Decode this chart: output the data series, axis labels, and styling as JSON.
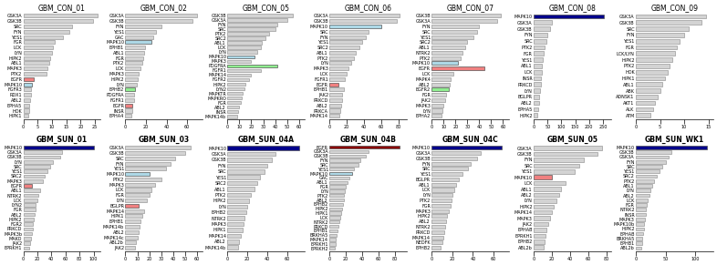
{
  "panels": [
    {
      "title": "GBM_CON_01",
      "xlim": 27,
      "xticks": [
        0,
        5,
        10,
        15,
        20,
        25
      ],
      "kinases": [
        "GSK3A",
        "GSK3B",
        "SRC",
        "FYN",
        "YES1",
        "FGR",
        "LCK",
        "LYN",
        "HIPK2",
        "ABL1",
        "MAPK3",
        "PTK2",
        "EGFR",
        "MAPK10",
        "FGFR3",
        "RDX1",
        "ABL2",
        "EPHA5",
        "HOK",
        "HIPK1"
      ],
      "values": [
        26,
        24.5,
        17,
        16,
        14,
        11,
        10.5,
        10,
        9.5,
        9,
        8.5,
        8,
        3.5,
        3,
        2.8,
        2.6,
        2.4,
        2.2,
        2,
        1.8
      ],
      "colors": [
        "#d3d3d3",
        "#d3d3d3",
        "#d3d3d3",
        "#d3d3d3",
        "#d3d3d3",
        "#d3d3d3",
        "#d3d3d3",
        "#d3d3d3",
        "#d3d3d3",
        "#d3d3d3",
        "#d3d3d3",
        "#d3d3d3",
        "#f08080",
        "#add8e6",
        "#d3d3d3",
        "#d3d3d3",
        "#d3d3d3",
        "#d3d3d3",
        "#d3d3d3",
        "#d3d3d3"
      ]
    },
    {
      "title": "GBM_CON_02",
      "xlim": 75,
      "xticks": [
        0,
        20,
        40,
        60
      ],
      "kinases": [
        "GSK3A",
        "GSK3B",
        "FYN",
        "YES1",
        "GAC",
        "MAPK10",
        "EPHB1",
        "ABL1",
        "FGR",
        "PTK2",
        "LCK",
        "MAPK3",
        "HIPK2",
        "LYN",
        "EPHB2",
        "PDGFRA",
        "FGFR1",
        "EGFR",
        "INSR",
        "EPHA4"
      ],
      "values": [
        70,
        65,
        35,
        30,
        27,
        25,
        19,
        18,
        17,
        16,
        15,
        13,
        12,
        11,
        9,
        8.5,
        8,
        7,
        6.5,
        6
      ],
      "colors": [
        "#d3d3d3",
        "#d3d3d3",
        "#d3d3d3",
        "#d3d3d3",
        "#d3d3d3",
        "#add8e6",
        "#d3d3d3",
        "#d3d3d3",
        "#d3d3d3",
        "#d3d3d3",
        "#d3d3d3",
        "#d3d3d3",
        "#d3d3d3",
        "#d3d3d3",
        "#90ee90",
        "#d3d3d3",
        "#d3d3d3",
        "#f08080",
        "#d3d3d3",
        "#d3d3d3"
      ]
    },
    {
      "title": "GBM_CON_05",
      "xlim": 65,
      "xticks": [
        0,
        10,
        20,
        30,
        40,
        50,
        60
      ],
      "kinases": [
        "GSK3B",
        "GSK3A",
        "FYN",
        "SRC",
        "PTK2",
        "SRC2",
        "ABL1",
        "LCK",
        "LYN",
        "MAPK10",
        "MAPK3",
        "PDGFRA",
        "FGFR1",
        "MAPK14",
        "FGFR2",
        "HIPK2",
        "LYN2",
        "MAPKTR",
        "MAPKRO",
        "FGR",
        "ABL2",
        "INSR",
        "MAPK14b"
      ],
      "values": [
        55,
        50,
        42,
        40,
        35,
        32,
        29,
        28,
        25,
        23,
        20,
        42,
        28,
        20,
        18,
        15,
        14,
        13,
        12,
        11,
        10,
        9,
        8
      ],
      "colors": [
        "#d3d3d3",
        "#d3d3d3",
        "#d3d3d3",
        "#d3d3d3",
        "#d3d3d3",
        "#d3d3d3",
        "#d3d3d3",
        "#d3d3d3",
        "#d3d3d3",
        "#add8e6",
        "#d3d3d3",
        "#90ee90",
        "#d3d3d3",
        "#d3d3d3",
        "#d3d3d3",
        "#d3d3d3",
        "#d3d3d3",
        "#d3d3d3",
        "#d3d3d3",
        "#d3d3d3",
        "#d3d3d3",
        "#d3d3d3",
        "#d3d3d3"
      ]
    },
    {
      "title": "GBM_CON_06",
      "xlim": 90,
      "xticks": [
        0,
        20,
        40,
        60,
        80
      ],
      "kinases": [
        "GSK3A",
        "GSK3B",
        "MAPK10",
        "SRC",
        "FYN",
        "YES1",
        "SRC2",
        "ABL1",
        "PTK2",
        "LYN",
        "MAPK3",
        "LCK",
        "FGFR1",
        "EGFR",
        "EPHB1",
        "JAK2",
        "PRKCD",
        "ABL2",
        "PRKCA",
        "MAPK14"
      ],
      "values": [
        82,
        78,
        60,
        45,
        42,
        38,
        35,
        30,
        28,
        25,
        22,
        20,
        18,
        10,
        17,
        15,
        14,
        13,
        12,
        11
      ],
      "colors": [
        "#d3d3d3",
        "#d3d3d3",
        "#add8e6",
        "#d3d3d3",
        "#d3d3d3",
        "#d3d3d3",
        "#d3d3d3",
        "#d3d3d3",
        "#d3d3d3",
        "#d3d3d3",
        "#d3d3d3",
        "#d3d3d3",
        "#d3d3d3",
        "#f08080",
        "#d3d3d3",
        "#d3d3d3",
        "#d3d3d3",
        "#d3d3d3",
        "#d3d3d3",
        "#d3d3d3"
      ]
    },
    {
      "title": "GBM_CON_07",
      "xlim": 65,
      "xticks": [
        0,
        10,
        20,
        30,
        40,
        50,
        60
      ],
      "kinases": [
        "GSK3B",
        "GSK3A",
        "FYN",
        "SRC",
        "YES1",
        "SRC2",
        "ABL1",
        "NTRK2",
        "PTK2",
        "MAPK10",
        "EGFR",
        "LCK",
        "MAPK4",
        "ABL2",
        "EGFR2",
        "FGR",
        "JAK2",
        "MAPK3",
        "LYN",
        "EPHA2"
      ],
      "values": [
        58,
        55,
        40,
        38,
        35,
        30,
        28,
        26,
        24,
        22,
        44,
        18,
        16,
        15,
        14,
        12,
        11,
        10,
        9,
        8
      ],
      "colors": [
        "#d3d3d3",
        "#d3d3d3",
        "#d3d3d3",
        "#d3d3d3",
        "#d3d3d3",
        "#d3d3d3",
        "#d3d3d3",
        "#d3d3d3",
        "#d3d3d3",
        "#add8e6",
        "#f08080",
        "#d3d3d3",
        "#d3d3d3",
        "#d3d3d3",
        "#90ee90",
        "#d3d3d3",
        "#d3d3d3",
        "#d3d3d3",
        "#d3d3d3",
        "#d3d3d3"
      ]
    },
    {
      "title": "GBM_CON_08",
      "xlim": 280,
      "xticks": [
        0,
        50,
        100,
        150,
        200,
        250
      ],
      "kinases": [
        "MAPK10",
        "GSK3A",
        "GSK3B",
        "FYN",
        "SRC",
        "PTK2",
        "FGR",
        "YES1",
        "ABL1",
        "LCK",
        "INSR",
        "PRKCD",
        "LYN",
        "BGLPR",
        "ABL2",
        "EPHA5",
        "HIPK2"
      ],
      "values": [
        255,
        65,
        60,
        50,
        45,
        38,
        35,
        32,
        30,
        28,
        26,
        24,
        22,
        20,
        18,
        16,
        14
      ],
      "colors": [
        "#00008b",
        "#d3d3d3",
        "#d3d3d3",
        "#d3d3d3",
        "#d3d3d3",
        "#d3d3d3",
        "#d3d3d3",
        "#d3d3d3",
        "#d3d3d3",
        "#d3d3d3",
        "#d3d3d3",
        "#d3d3d3",
        "#d3d3d3",
        "#d3d3d3",
        "#d3d3d3",
        "#d3d3d3",
        "#d3d3d3"
      ]
    },
    {
      "title": "GBM_CON_09",
      "xlim": 16,
      "xticks": [
        0,
        5,
        10,
        15
      ],
      "kinases": [
        "GSK3A",
        "GSK3B",
        "SRC",
        "FYN",
        "YES1",
        "FGR",
        "LCK/LYN",
        "HIPK2",
        "PTK2",
        "HOK",
        "HIPK1",
        "ABL1",
        "ABK",
        "ADNSK1",
        "AKT1",
        "ALK",
        "ATM"
      ],
      "values": [
        14.5,
        13.5,
        11,
        10,
        9,
        8.5,
        8,
        7.5,
        7,
        6.5,
        6,
        5.5,
        5,
        4.5,
        4,
        3.5,
        3
      ],
      "colors": [
        "#d3d3d3",
        "#d3d3d3",
        "#d3d3d3",
        "#d3d3d3",
        "#d3d3d3",
        "#d3d3d3",
        "#d3d3d3",
        "#d3d3d3",
        "#d3d3d3",
        "#d3d3d3",
        "#d3d3d3",
        "#d3d3d3",
        "#d3d3d3",
        "#d3d3d3",
        "#d3d3d3",
        "#d3d3d3",
        "#d3d3d3"
      ]
    },
    {
      "title": "GBM_SUN_01",
      "xlim": 110,
      "xticks": [
        0,
        20,
        40,
        60,
        80,
        100
      ],
      "kinases": [
        "MAPK10",
        "GSK3A",
        "GSK3B",
        "LYN",
        "SRC",
        "YES1",
        "SRC2",
        "MAPK3",
        "EGFR",
        "ABL1",
        "NTRK2",
        "LCK",
        "LYN2",
        "FGR",
        "ABL2",
        "HIPK2",
        "FGR2",
        "PRKCD",
        "MAPK3b",
        "MAKO",
        "JAK2",
        "EPRKH1"
      ],
      "values": [
        100,
        55,
        52,
        42,
        38,
        34,
        30,
        28,
        12,
        24,
        22,
        20,
        18,
        17,
        16,
        15,
        14,
        13,
        12,
        11,
        10,
        9
      ],
      "colors": [
        "#00008b",
        "#d3d3d3",
        "#d3d3d3",
        "#d3d3d3",
        "#d3d3d3",
        "#d3d3d3",
        "#d3d3d3",
        "#d3d3d3",
        "#f08080",
        "#d3d3d3",
        "#d3d3d3",
        "#d3d3d3",
        "#d3d3d3",
        "#d3d3d3",
        "#d3d3d3",
        "#d3d3d3",
        "#d3d3d3",
        "#d3d3d3",
        "#d3d3d3",
        "#d3d3d3",
        "#d3d3d3",
        "#d3d3d3"
      ]
    },
    {
      "title": "GBM_SUN_03",
      "xlim": 65,
      "xticks": [
        0,
        10,
        20,
        30,
        40,
        50,
        60
      ],
      "kinases": [
        "GSK3A",
        "GSK3B",
        "SRC",
        "FYN",
        "YES1",
        "MAPK10",
        "PTK2",
        "MAPK3",
        "LCK",
        "FGR",
        "LYN",
        "BGLPR",
        "MAPK14",
        "HIPK1",
        "EPHB1",
        "MAPK14b",
        "ABL2",
        "MAPK14c",
        "ABL2b",
        "JAK2"
      ],
      "values": [
        55,
        50,
        42,
        38,
        34,
        20,
        30,
        25,
        22,
        20,
        18,
        11,
        16,
        14,
        13,
        12,
        11,
        10,
        9,
        8
      ],
      "colors": [
        "#d3d3d3",
        "#d3d3d3",
        "#d3d3d3",
        "#d3d3d3",
        "#d3d3d3",
        "#add8e6",
        "#d3d3d3",
        "#d3d3d3",
        "#d3d3d3",
        "#d3d3d3",
        "#d3d3d3",
        "#f08080",
        "#d3d3d3",
        "#d3d3d3",
        "#d3d3d3",
        "#d3d3d3",
        "#d3d3d3",
        "#d3d3d3",
        "#d3d3d3",
        "#d3d3d3"
      ]
    },
    {
      "title": "GBM_SUN_04A",
      "xlim": 78,
      "xticks": [
        0,
        20,
        40,
        60
      ],
      "kinases": [
        "MAPK10",
        "GSK3A",
        "GSK3B",
        "FYN",
        "SRC",
        "YES1",
        "SRC2",
        "ABL1",
        "PTK2",
        "HIPK2",
        "LYN",
        "EPHB2",
        "NTRK2",
        "MAPK3",
        "HIPK1",
        "MAPK14",
        "ABL2",
        "MAPK14b"
      ],
      "values": [
        72,
        48,
        45,
        40,
        37,
        33,
        30,
        27,
        24,
        22,
        20,
        19,
        17,
        16,
        15,
        13,
        12,
        11
      ],
      "colors": [
        "#00008b",
        "#d3d3d3",
        "#d3d3d3",
        "#d3d3d3",
        "#d3d3d3",
        "#d3d3d3",
        "#d3d3d3",
        "#d3d3d3",
        "#d3d3d3",
        "#d3d3d3",
        "#d3d3d3",
        "#d3d3d3",
        "#d3d3d3",
        "#d3d3d3",
        "#d3d3d3",
        "#d3d3d3",
        "#d3d3d3",
        "#d3d3d3"
      ]
    },
    {
      "title": "GBM_SUN_04B",
      "xlim": 95,
      "xticks": [
        0,
        20,
        40,
        60,
        80
      ],
      "kinases": [
        "EGFR",
        "GSK3A",
        "GSK3B",
        "FYN",
        "SRC",
        "YES1",
        "MAPK10",
        "GAC",
        "ABL1",
        "FGR",
        "LYN",
        "PTK2",
        "ABL2",
        "EPHB2",
        "HIPK2",
        "HIPK1",
        "LCK",
        "NTRK2",
        "PRKCD",
        "EPHB1",
        "BRKHA5",
        "MAPK14",
        "EPRKH1",
        "EPRKH2"
      ],
      "values": [
        86,
        48,
        45,
        38,
        35,
        30,
        28,
        24,
        22,
        20,
        19,
        18,
        17,
        16,
        15,
        14,
        13,
        12,
        11,
        10,
        9,
        8,
        7,
        6
      ],
      "colors": [
        "#8b0000",
        "#d3d3d3",
        "#d3d3d3",
        "#d3d3d3",
        "#d3d3d3",
        "#d3d3d3",
        "#add8e6",
        "#d3d3d3",
        "#d3d3d3",
        "#d3d3d3",
        "#d3d3d3",
        "#d3d3d3",
        "#d3d3d3",
        "#d3d3d3",
        "#d3d3d3",
        "#d3d3d3",
        "#d3d3d3",
        "#d3d3d3",
        "#d3d3d3",
        "#d3d3d3",
        "#d3d3d3",
        "#d3d3d3",
        "#d3d3d3",
        "#d3d3d3"
      ]
    },
    {
      "title": "GBM_SUN_04C",
      "xlim": 75,
      "xticks": [
        0,
        20,
        40,
        60
      ],
      "kinases": [
        "MAPK10",
        "GSK3A",
        "GSK3B",
        "FYN",
        "SRC",
        "YES1",
        "BGLPR",
        "ABL1",
        "LCK",
        "LYN",
        "PTK2",
        "FGR",
        "MAPK3",
        "HIPK2",
        "ABL2",
        "NTRK2",
        "PRKCD",
        "MAPK14",
        "NEDFK",
        "EPHB2"
      ],
      "values": [
        68,
        48,
        44,
        38,
        35,
        30,
        26,
        24,
        22,
        20,
        19,
        18,
        17,
        15,
        14,
        13,
        12,
        11,
        10,
        9
      ],
      "colors": [
        "#00008b",
        "#d3d3d3",
        "#d3d3d3",
        "#d3d3d3",
        "#d3d3d3",
        "#d3d3d3",
        "#d3d3d3",
        "#d3d3d3",
        "#d3d3d3",
        "#d3d3d3",
        "#d3d3d3",
        "#d3d3d3",
        "#d3d3d3",
        "#d3d3d3",
        "#d3d3d3",
        "#d3d3d3",
        "#d3d3d3",
        "#d3d3d3",
        "#d3d3d3",
        "#d3d3d3"
      ]
    },
    {
      "title": "GBM_SUN_05",
      "xlim": 85,
      "xticks": [
        0,
        20,
        40,
        60,
        80
      ],
      "kinases": [
        "GSK3A",
        "GSK3B",
        "FYN",
        "SRC",
        "YES1",
        "MAPK10",
        "LCK",
        "ABL1",
        "ABL2",
        "LYN",
        "HIPK2",
        "MAPK14",
        "MAPK3",
        "JAK2",
        "EPHAB",
        "EPRKH1",
        "EPHB2",
        "ABL2b"
      ],
      "values": [
        75,
        70,
        55,
        50,
        45,
        20,
        35,
        30,
        28,
        25,
        22,
        20,
        18,
        16,
        14,
        13,
        12,
        11
      ],
      "colors": [
        "#d3d3d3",
        "#d3d3d3",
        "#d3d3d3",
        "#d3d3d3",
        "#d3d3d3",
        "#f08080",
        "#d3d3d3",
        "#d3d3d3",
        "#d3d3d3",
        "#d3d3d3",
        "#d3d3d3",
        "#d3d3d3",
        "#d3d3d3",
        "#d3d3d3",
        "#d3d3d3",
        "#d3d3d3",
        "#d3d3d3",
        "#d3d3d3"
      ]
    },
    {
      "title": "GBM_SUN_WK1",
      "xlim": 130,
      "xticks": [
        0,
        50,
        100
      ],
      "kinases": [
        "MAPK10",
        "GSK3B",
        "GSK3A",
        "FYN",
        "SRC",
        "YES1",
        "SRC2",
        "PTK2",
        "ABL1",
        "LYN",
        "ABL2",
        "LCK",
        "FGR",
        "NTRK2",
        "INSR",
        "MAPK3",
        "MAPK10b",
        "HIPK2",
        "EPHAB",
        "BRKHA5",
        "EPHB1",
        "ABL2b"
      ],
      "values": [
        120,
        60,
        55,
        50,
        45,
        40,
        35,
        30,
        28,
        25,
        22,
        20,
        18,
        17,
        16,
        15,
        14,
        13,
        12,
        11,
        10,
        9
      ],
      "colors": [
        "#00008b",
        "#d3d3d3",
        "#d3d3d3",
        "#d3d3d3",
        "#d3d3d3",
        "#d3d3d3",
        "#d3d3d3",
        "#d3d3d3",
        "#d3d3d3",
        "#d3d3d3",
        "#d3d3d3",
        "#d3d3d3",
        "#d3d3d3",
        "#d3d3d3",
        "#d3d3d3",
        "#d3d3d3",
        "#d3d3d3",
        "#d3d3d3",
        "#d3d3d3",
        "#d3d3d3",
        "#d3d3d3",
        "#d3d3d3"
      ]
    }
  ],
  "row1_panels": [
    0,
    1,
    2,
    3,
    4,
    5,
    6
  ],
  "row2_panels": [
    7,
    8,
    9,
    10,
    11,
    12,
    13
  ],
  "fig_width": 7.86,
  "fig_height": 2.91,
  "bar_height": 0.7,
  "title_fontsize": 5.5,
  "label_fontsize": 3.5,
  "tick_fontsize": 3.5,
  "edge_color": "#555555"
}
